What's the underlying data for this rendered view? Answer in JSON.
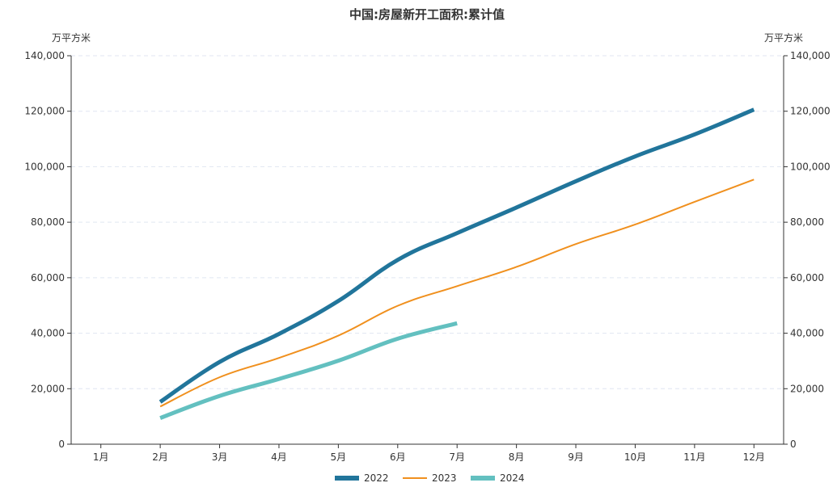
{
  "chart_data": {
    "type": "line",
    "title": "中国:房屋新开工面积:累计值",
    "y_unit_left": "万平方米",
    "y_unit_right": "万平方米",
    "categories": [
      "1月",
      "2月",
      "3月",
      "4月",
      "5月",
      "6月",
      "7月",
      "8月",
      "9月",
      "10月",
      "11月",
      "12月"
    ],
    "ylim": [
      0,
      140000
    ],
    "yticks": [
      0,
      20000,
      40000,
      60000,
      80000,
      100000,
      120000,
      140000
    ],
    "ytick_labels": [
      "0",
      "20,000",
      "40,000",
      "60,000",
      "80,000",
      "100,000",
      "120,000",
      "140,000"
    ],
    "grid": true,
    "legend_position": "bottom",
    "series": [
      {
        "name": "2022",
        "color": "#21759B",
        "width": "thick",
        "values": [
          null,
          15241,
          29638,
          39739,
          51628,
          66423,
          76080,
          85292,
          94767,
          103722,
          111632,
          120587
        ]
      },
      {
        "name": "2023",
        "color": "#F0901E",
        "width": "thin",
        "values": [
          null,
          13567,
          24121,
          31095,
          39123,
          49880,
          56969,
          63891,
          72123,
          79177,
          87331,
          95376
        ]
      },
      {
        "name": "2024",
        "color": "#63C0C0",
        "width": "thick",
        "values": [
          null,
          9429,
          17402,
          23510,
          30090,
          38023,
          43580,
          null,
          null,
          null,
          null,
          null
        ]
      }
    ]
  }
}
